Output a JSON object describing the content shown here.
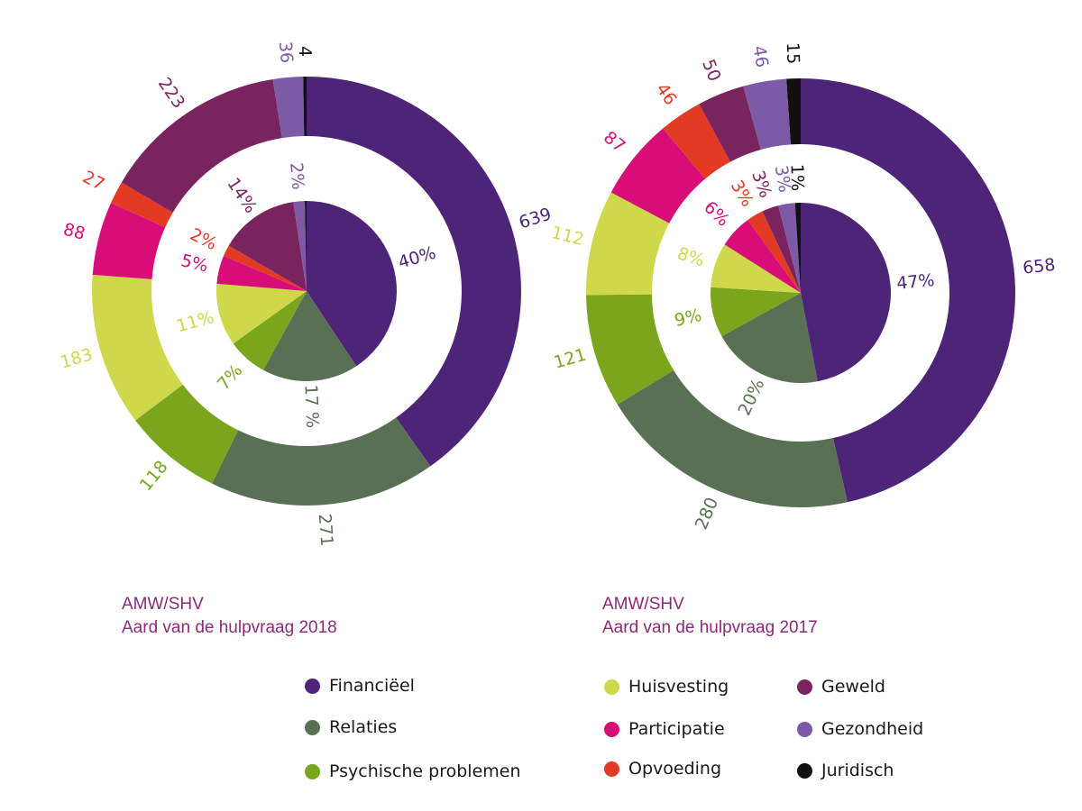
{
  "categories": [
    "Financiëel",
    "Relaties",
    "Psychische problemen",
    "Huisvesting",
    "Participatie",
    "Opvoeding",
    "Geweld",
    "Gezondheid",
    "Juridisch"
  ],
  "colors": {
    "Financiëel": "#4e2478",
    "Relaties": "#5a7055",
    "Psychische problemen": "#7aa51c",
    "Huisvesting": "#cfd84a",
    "Participatie": "#d90d78",
    "Opvoeding": "#e33a24",
    "Geweld": "#7a245f",
    "Gezondheid": "#7d5aa8",
    "Juridisch": "#111111"
  },
  "chart_data": [
    {
      "type": "pie",
      "title": "AMW/SHV",
      "subtitle": "Aard van de hulpvraag 2018",
      "series": [
        {
          "name": "counts",
          "labels": [
            "639",
            "271",
            "118",
            "183",
            "88",
            "27",
            "223",
            "36",
            "4"
          ],
          "values": [
            639,
            271,
            118,
            183,
            88,
            27,
            223,
            36,
            4
          ]
        },
        {
          "name": "percentages",
          "labels": [
            "40%",
            "17 %",
            "7%",
            "11%",
            "5%",
            "2%",
            "14%",
            "2%",
            ""
          ],
          "values": [
            40,
            17,
            7,
            11,
            5,
            2,
            14,
            2,
            0.3
          ]
        }
      ]
    },
    {
      "type": "pie",
      "title": "AMW/SHV",
      "subtitle": "Aard van de hulpvraag 2017",
      "series": [
        {
          "name": "counts",
          "labels": [
            "658",
            "280",
            "121",
            "112",
            "87",
            "46",
            "50",
            "46",
            "15"
          ],
          "values": [
            658,
            280,
            121,
            112,
            87,
            46,
            50,
            46,
            15
          ]
        },
        {
          "name": "percentages",
          "labels": [
            "47%",
            "20%",
            "9%",
            "8%",
            "6%",
            "3%",
            "3%",
            "3%",
            "1%"
          ],
          "values": [
            47,
            20,
            9,
            8,
            6,
            3,
            3,
            3,
            1
          ]
        }
      ]
    }
  ],
  "captions": {
    "y2018": {
      "line1": "AMW/SHV",
      "line2": "Aard van de hulpvraag 2018"
    },
    "y2017": {
      "line1": "AMW/SHV",
      "line2": "Aard van de hulpvraag 2017"
    }
  },
  "legend": {
    "items": [
      {
        "label": "Financiëel",
        "color": "#4e2478"
      },
      {
        "label": "Relaties",
        "color": "#5a7055"
      },
      {
        "label": "Psychische problemen",
        "color": "#7aa51c"
      },
      {
        "label": "Huisvesting",
        "color": "#cfd84a"
      },
      {
        "label": "Participatie",
        "color": "#d90d78"
      },
      {
        "label": "Opvoeding",
        "color": "#e33a24"
      },
      {
        "label": "Geweld",
        "color": "#7a245f"
      },
      {
        "label": "Gezondheid",
        "color": "#7d5aa8"
      },
      {
        "label": "Juridisch",
        "color": "#111111"
      }
    ]
  }
}
